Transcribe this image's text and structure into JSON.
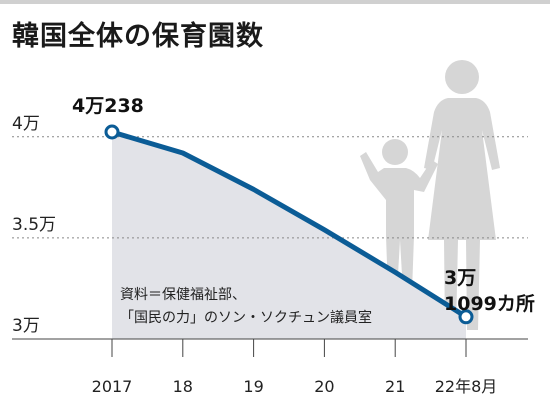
{
  "title": "韓国全体の保育園数",
  "colors": {
    "line": "#0b5c96",
    "area": "#e2e3e8",
    "figures": "#d6d6d6",
    "topbar": "#d0d0d0"
  },
  "icon_name": "parent-and-child-icon",
  "chart_data": {
    "type": "line",
    "title": "韓国全体の保育園数",
    "categories": [
      "2017",
      "18",
      "19",
      "20",
      "21",
      "22年8月"
    ],
    "series": [
      {
        "values": [
          40238,
          39200,
          37400,
          35400,
          33300,
          31099
        ]
      }
    ],
    "y_ticks": [
      {
        "value": 30000,
        "label": "3万"
      },
      {
        "value": 35000,
        "label": "3.5万"
      },
      {
        "value": 40000,
        "label": "4万"
      }
    ],
    "ylim": [
      30000,
      40238
    ],
    "grid": true,
    "annotations": {
      "start_label": "4万238",
      "end_label_line1": "3万",
      "end_label_line2": "1099カ所",
      "source_line1": "資料＝保健福祉部、",
      "source_line2": "「国民の力」のソン・ソクチュン議員室"
    }
  }
}
